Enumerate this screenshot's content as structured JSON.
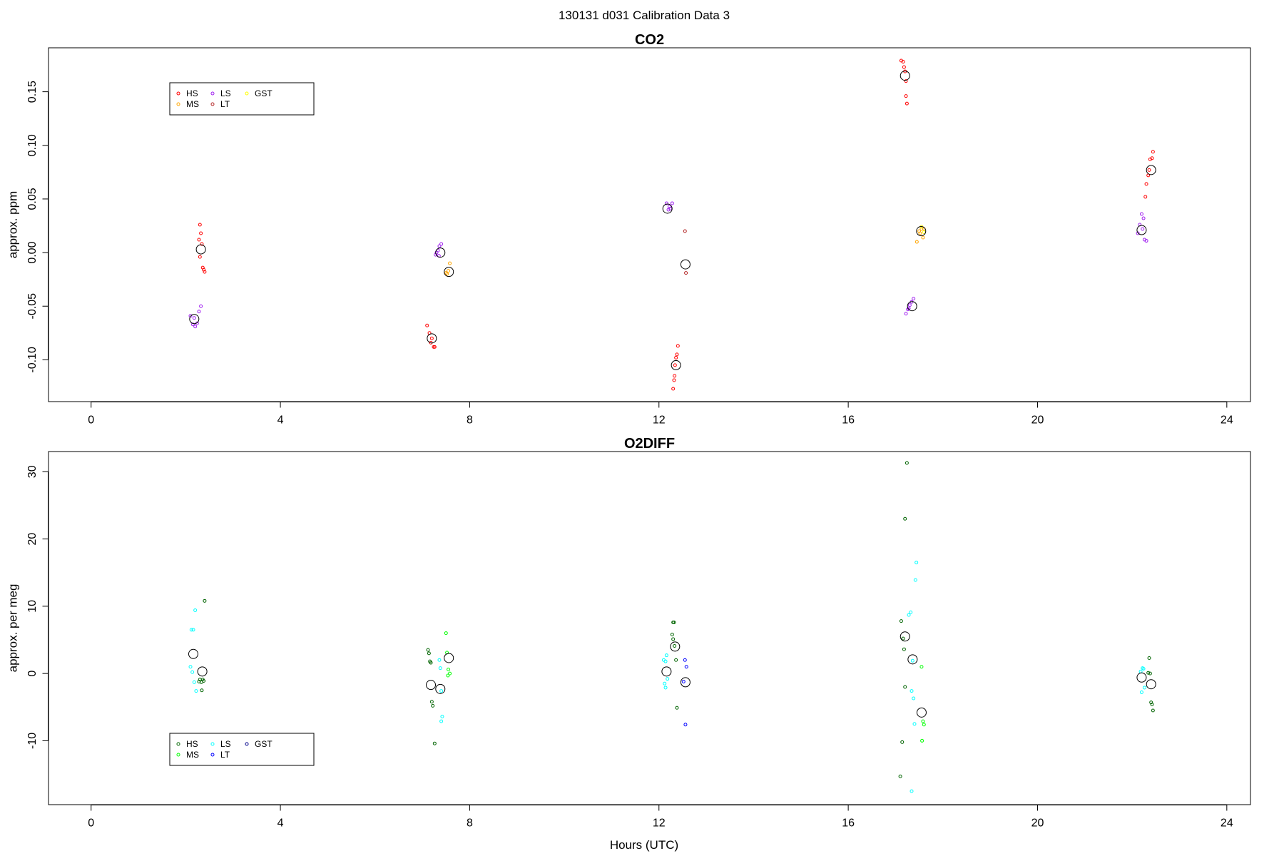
{
  "figure": {
    "title": "130131   d031   Calibration Data 3",
    "xlabel": "Hours (UTC)"
  },
  "chart_data": [
    {
      "type": "scatter",
      "title": "CO2",
      "ylabel": "approx. ppm",
      "xlim": [
        -0.9,
        24.5
      ],
      "ylim": [
        -0.139,
        0.191
      ],
      "x_ticks": [
        0,
        4,
        8,
        12,
        16,
        20,
        24
      ],
      "y_ticks": [
        -0.1,
        -0.05,
        0.0,
        0.05,
        0.1,
        0.15
      ],
      "y_tick_labels": [
        "-0.10",
        "-0.05",
        "0.00",
        "0.05",
        "0.10",
        "0.15"
      ],
      "legend": {
        "placement": "top-left",
        "entries": [
          {
            "name": "HS",
            "color": "#ff0000"
          },
          {
            "name": "MS",
            "color": "#ffa500"
          },
          {
            "name": "LS",
            "color": "#a020f0"
          },
          {
            "name": "LT",
            "color": "#b22222"
          },
          {
            "name": "GST",
            "color": "#ffff00"
          }
        ]
      },
      "series": [
        {
          "name": "HS",
          "color": "#ff0000",
          "points": [
            [
              2.3,
              0.026
            ],
            [
              2.32,
              0.018
            ],
            [
              2.28,
              0.012
            ],
            [
              2.34,
              0.008
            ],
            [
              2.3,
              -0.004
            ],
            [
              2.36,
              -0.014
            ],
            [
              2.38,
              -0.016
            ],
            [
              2.4,
              -0.018
            ],
            [
              7.1,
              -0.068
            ],
            [
              7.15,
              -0.075
            ],
            [
              7.2,
              -0.08
            ],
            [
              7.18,
              -0.084
            ],
            [
              7.24,
              -0.088
            ],
            [
              7.26,
              -0.088
            ],
            [
              12.4,
              -0.087
            ],
            [
              12.38,
              -0.095
            ],
            [
              12.36,
              -0.098
            ],
            [
              12.34,
              -0.105
            ],
            [
              12.33,
              -0.115
            ],
            [
              12.32,
              -0.119
            ],
            [
              12.3,
              -0.127
            ],
            [
              17.12,
              0.179
            ],
            [
              17.16,
              0.178
            ],
            [
              17.18,
              0.173
            ],
            [
              17.2,
              0.169
            ],
            [
              17.22,
              0.16
            ],
            [
              17.22,
              0.146
            ],
            [
              17.24,
              0.139
            ],
            [
              22.28,
              0.052
            ],
            [
              22.3,
              0.064
            ],
            [
              22.34,
              0.072
            ],
            [
              22.36,
              0.077
            ],
            [
              22.38,
              0.087
            ],
            [
              22.42,
              0.088
            ],
            [
              22.44,
              0.094
            ]
          ]
        },
        {
          "name": "MS",
          "color": "#ffa500",
          "points": [
            [
              7.52,
              -0.02
            ],
            [
              7.55,
              -0.017
            ],
            [
              7.58,
              -0.01
            ],
            [
              7.5,
              -0.019
            ],
            [
              17.45,
              0.01
            ],
            [
              17.52,
              0.018
            ],
            [
              17.55,
              0.022
            ],
            [
              17.58,
              0.014
            ],
            [
              17.6,
              0.022
            ],
            [
              17.5,
              0.02
            ]
          ]
        },
        {
          "name": "LS",
          "color": "#a020f0",
          "points": [
            [
              2.1,
              -0.059
            ],
            [
              2.15,
              -0.067
            ],
            [
              2.2,
              -0.069
            ],
            [
              2.24,
              -0.066
            ],
            [
              2.28,
              -0.055
            ],
            [
              2.32,
              -0.05
            ],
            [
              2.18,
              -0.061
            ],
            [
              7.3,
              0.0
            ],
            [
              7.33,
              0.002
            ],
            [
              7.36,
              0.006
            ],
            [
              7.4,
              0.008
            ],
            [
              7.28,
              -0.002
            ],
            [
              7.35,
              -0.003
            ],
            [
              12.16,
              0.046
            ],
            [
              12.2,
              0.04
            ],
            [
              12.24,
              0.041
            ],
            [
              12.28,
              0.046
            ],
            [
              12.22,
              0.043
            ],
            [
              17.22,
              -0.057
            ],
            [
              17.26,
              -0.053
            ],
            [
              17.3,
              -0.049
            ],
            [
              17.34,
              -0.046
            ],
            [
              17.38,
              -0.043
            ],
            [
              17.28,
              -0.052
            ],
            [
              22.12,
              0.018
            ],
            [
              22.16,
              0.026
            ],
            [
              22.2,
              0.036
            ],
            [
              22.24,
              0.032
            ],
            [
              22.26,
              0.012
            ],
            [
              22.3,
              0.011
            ],
            [
              22.22,
              0.022
            ]
          ]
        },
        {
          "name": "LT",
          "color": "#b22222",
          "points": [
            [
              12.55,
              0.02
            ],
            [
              12.57,
              -0.019
            ]
          ]
        },
        {
          "name": "GST",
          "color": "#ffff00",
          "points": [
            [
              17.55,
              0.024
            ],
            [
              17.6,
              0.019
            ]
          ]
        },
        {
          "name": "",
          "color": "#000000",
          "large": true,
          "points": [
            [
              2.18,
              -0.062
            ],
            [
              2.32,
              0.003
            ],
            [
              7.2,
              -0.08
            ],
            [
              7.38,
              0.0
            ],
            [
              7.56,
              -0.018
            ],
            [
              12.18,
              0.041
            ],
            [
              12.36,
              -0.105
            ],
            [
              12.56,
              -0.011
            ],
            [
              17.2,
              0.165
            ],
            [
              17.35,
              -0.05
            ],
            [
              17.54,
              0.02
            ],
            [
              22.2,
              0.021
            ],
            [
              22.4,
              0.077
            ]
          ]
        }
      ]
    },
    {
      "type": "scatter",
      "title": "O2DIFF",
      "ylabel": "approx. per meg",
      "xlim": [
        -0.9,
        24.5
      ],
      "ylim": [
        -19.5,
        33.0
      ],
      "x_ticks": [
        0,
        4,
        8,
        12,
        16,
        20,
        24
      ],
      "y_ticks": [
        -10,
        0,
        10,
        20,
        30
      ],
      "y_tick_labels": [
        "-10",
        "0",
        "10",
        "20",
        "30"
      ],
      "legend": {
        "placement": "bottom-left",
        "entries": [
          {
            "name": "HS",
            "color": "#006400"
          },
          {
            "name": "MS",
            "color": "#00ff00"
          },
          {
            "name": "LS",
            "color": "#00ffff"
          },
          {
            "name": "LT",
            "color": "#0000ff"
          },
          {
            "name": "GST",
            "color": "#00008b"
          }
        ]
      },
      "series": [
        {
          "name": "HS",
          "color": "#006400",
          "points": [
            [
              2.3,
              -0.9
            ],
            [
              2.33,
              -1.3
            ],
            [
              2.36,
              -0.9
            ],
            [
              2.38,
              -1.1
            ],
            [
              2.34,
              -2.5
            ],
            [
              2.4,
              10.8
            ],
            [
              2.28,
              -1.2
            ],
            [
              7.12,
              3.5
            ],
            [
              7.14,
              3.0
            ],
            [
              7.16,
              1.8
            ],
            [
              7.18,
              1.6
            ],
            [
              7.2,
              -4.2
            ],
            [
              7.22,
              -4.8
            ],
            [
              7.26,
              -10.4
            ],
            [
              12.3,
              7.6
            ],
            [
              12.32,
              7.6
            ],
            [
              12.28,
              5.8
            ],
            [
              12.3,
              5.1
            ],
            [
              12.33,
              4.1
            ],
            [
              12.36,
              2.0
            ],
            [
              12.38,
              -5.1
            ],
            [
              17.12,
              7.8
            ],
            [
              17.16,
              5.2
            ],
            [
              17.18,
              3.6
            ],
            [
              17.2,
              -2.0
            ],
            [
              17.14,
              -10.2
            ],
            [
              17.1,
              -15.3
            ],
            [
              17.2,
              23.0
            ],
            [
              17.24,
              31.3
            ],
            [
              22.36,
              2.3
            ],
            [
              22.38,
              0.0
            ],
            [
              22.4,
              -4.3
            ],
            [
              22.42,
              -4.6
            ],
            [
              22.44,
              -5.5
            ],
            [
              22.34,
              0.1
            ]
          ]
        },
        {
          "name": "MS",
          "color": "#00ff00",
          "points": [
            [
              7.5,
              6.0
            ],
            [
              7.52,
              3.1
            ],
            [
              7.55,
              0.6
            ],
            [
              7.58,
              0.0
            ],
            [
              7.54,
              -0.3
            ],
            [
              17.55,
              1.0
            ],
            [
              17.58,
              -7.1
            ],
            [
              17.6,
              -7.6
            ],
            [
              17.56,
              -10.0
            ]
          ]
        },
        {
          "name": "LS",
          "color": "#00ffff",
          "points": [
            [
              2.12,
              6.5
            ],
            [
              2.16,
              6.5
            ],
            [
              2.2,
              9.4
            ],
            [
              2.1,
              1.0
            ],
            [
              2.14,
              0.2
            ],
            [
              2.18,
              -1.3
            ],
            [
              2.22,
              -2.6
            ],
            [
              7.36,
              2.0
            ],
            [
              7.38,
              0.8
            ],
            [
              7.4,
              -2.6
            ],
            [
              7.42,
              -6.4
            ],
            [
              7.4,
              -7.1
            ],
            [
              12.1,
              2.0
            ],
            [
              12.14,
              1.8
            ],
            [
              12.16,
              2.7
            ],
            [
              12.18,
              -0.8
            ],
            [
              12.12,
              -1.5
            ],
            [
              12.14,
              -2.1
            ],
            [
              17.28,
              8.7
            ],
            [
              17.32,
              9.1
            ],
            [
              17.36,
              1.9
            ],
            [
              17.34,
              -2.6
            ],
            [
              17.38,
              -3.7
            ],
            [
              17.4,
              -7.5
            ],
            [
              17.42,
              13.9
            ],
            [
              17.44,
              16.5
            ],
            [
              17.34,
              -17.5
            ],
            [
              22.18,
              0.3
            ],
            [
              22.22,
              0.8
            ],
            [
              22.24,
              0.7
            ],
            [
              22.26,
              -2.1
            ],
            [
              22.2,
              -2.8
            ]
          ]
        },
        {
          "name": "LT",
          "color": "#0000ff",
          "points": [
            [
              12.55,
              2.0
            ],
            [
              12.58,
              1.0
            ],
            [
              12.52,
              -1.2
            ],
            [
              12.56,
              -7.6
            ]
          ]
        },
        {
          "name": "GST",
          "color": "#00008b",
          "points": []
        },
        {
          "name": "",
          "color": "#000000",
          "large": true,
          "points": [
            [
              2.16,
              2.9
            ],
            [
              2.35,
              0.3
            ],
            [
              7.18,
              -1.7
            ],
            [
              7.38,
              -2.3
            ],
            [
              7.56,
              2.3
            ],
            [
              12.16,
              0.3
            ],
            [
              12.34,
              4.0
            ],
            [
              12.56,
              -1.3
            ],
            [
              17.2,
              5.5
            ],
            [
              17.36,
              2.1
            ],
            [
              17.55,
              -5.8
            ],
            [
              22.2,
              -0.6
            ],
            [
              22.4,
              -1.6
            ]
          ]
        }
      ]
    }
  ]
}
